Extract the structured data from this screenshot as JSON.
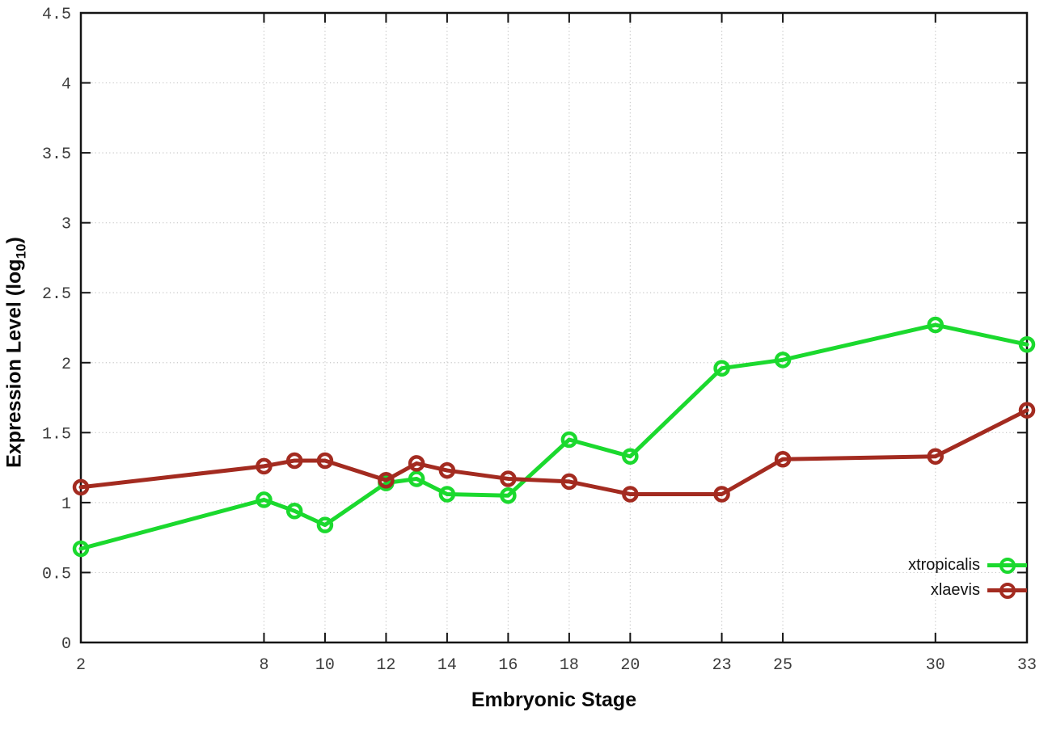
{
  "chart_data": {
    "type": "line",
    "title": "",
    "xlabel": "Embryonic Stage",
    "ylabel": "Expression Level (log10)",
    "ylabel_parts": {
      "pre": "Expression Level (log",
      "sub": "10",
      "post": ")"
    },
    "x": [
      2,
      8,
      9,
      10,
      12,
      13,
      14,
      16,
      18,
      20,
      23,
      25,
      30,
      33
    ],
    "series": [
      {
        "name": "xtropicalis",
        "color": "#1bd92e",
        "values": [
          0.67,
          1.02,
          0.94,
          0.84,
          1.14,
          1.17,
          1.06,
          1.05,
          1.45,
          1.33,
          1.96,
          2.02,
          2.27,
          2.13
        ]
      },
      {
        "name": "xlaevis",
        "color": "#a32b20",
        "values": [
          1.11,
          1.26,
          1.3,
          1.3,
          1.16,
          1.28,
          1.23,
          1.17,
          1.15,
          1.06,
          1.06,
          1.31,
          1.33,
          1.66
        ]
      }
    ],
    "xlim": [
      2,
      33
    ],
    "ylim": [
      0,
      4.5
    ],
    "xticks": [
      2,
      8,
      10,
      12,
      14,
      16,
      18,
      20,
      23,
      25,
      30,
      33
    ],
    "xtick_labels": [
      "2",
      "8",
      "10",
      "12",
      "14",
      "16",
      "18",
      "20",
      "23",
      "25",
      "30",
      "33"
    ],
    "yticks": [
      0,
      0.5,
      1,
      1.5,
      2,
      2.5,
      3,
      3.5,
      4,
      4.5
    ],
    "ytick_labels": [
      "0",
      "0.5",
      "1",
      "1.5",
      "2",
      "2.5",
      "3",
      "3.5",
      "4",
      "4.5"
    ],
    "grid": true,
    "legend_position": "bottom-right",
    "colors": {
      "background": "#ffffff",
      "axis": "#141414",
      "grid": "#c6c6c6",
      "tick_label": "#3c3c3c"
    }
  }
}
